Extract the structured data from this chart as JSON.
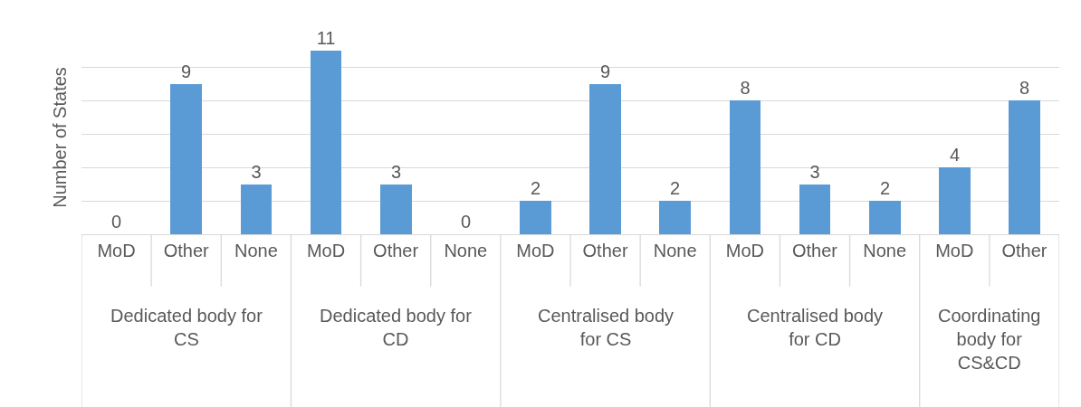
{
  "chart_data": {
    "type": "bar",
    "ylabel": "Number of States",
    "categories": [
      "MoD",
      "Other",
      "None",
      "MoD",
      "Other",
      "None",
      "MoD",
      "Other",
      "None",
      "MoD",
      "Other",
      "None",
      "MoD",
      "Other"
    ],
    "values": [
      0,
      9,
      3,
      11,
      3,
      0,
      2,
      9,
      2,
      8,
      3,
      2,
      4,
      8
    ],
    "color": "#5b9bd5",
    "data_labels": true,
    "tick_labels": "x",
    "grid": "y",
    "annotations": [
      "Dedicated body for CS",
      "Dedicated body for CD",
      "Centralised body for CS",
      "Centralised body for CD",
      "Coordinating body for CS&CD"
    ]
  }
}
